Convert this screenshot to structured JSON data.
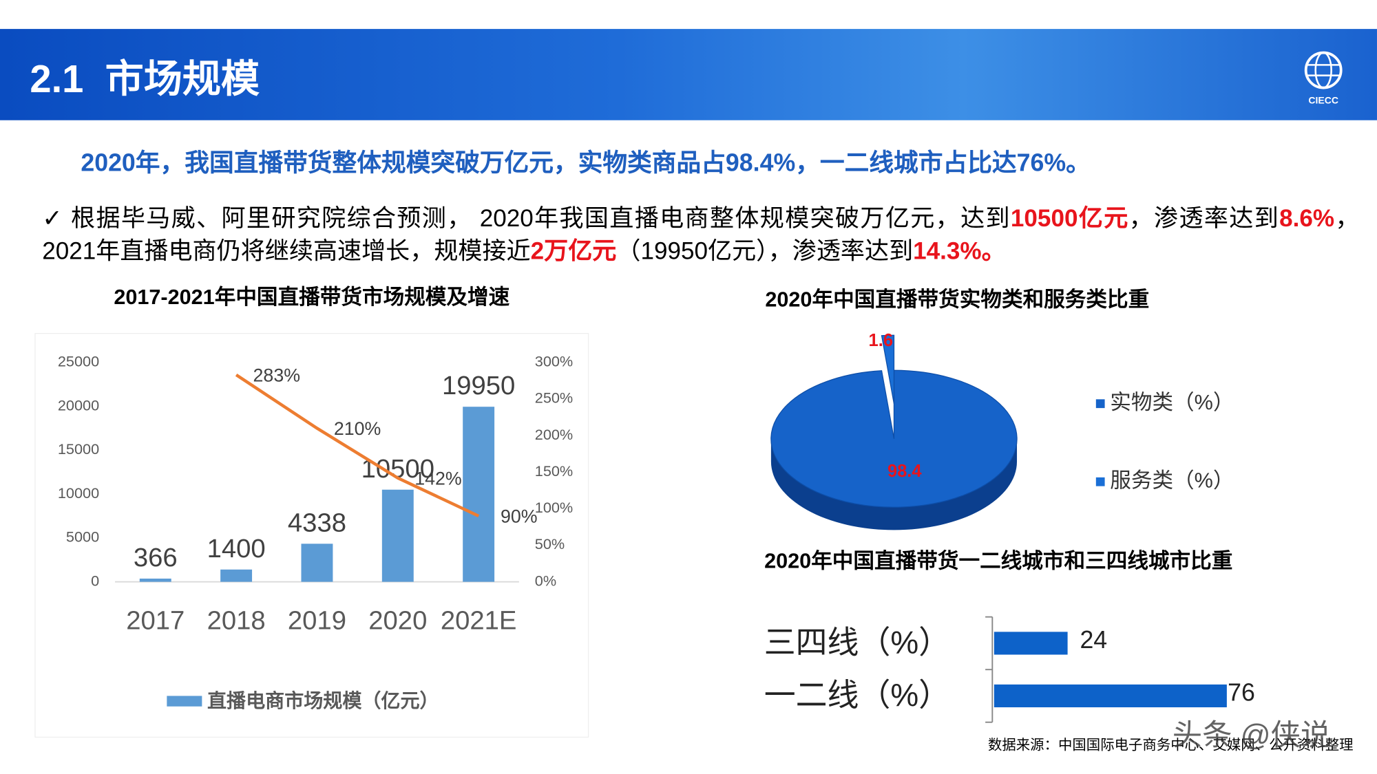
{
  "header": {
    "title": "2.1  市场规模",
    "logo": "CIECC"
  },
  "headline": "2020年，我国直播带货整体规模突破万亿元，实物类商品占98.4%，一二线城市占比达76%。",
  "body": [
    {
      "text": "✓   根据毕马威、阿里研究院综合预测， 2020年我国直播电商整体规模突破万亿元，达到",
      "color": "#000000"
    },
    {
      "text": "10500亿元",
      "color": "#e8141c"
    },
    {
      "text": "，渗透率达到",
      "color": "#000000"
    },
    {
      "text": "8.6%",
      "color": "#e8141c"
    },
    {
      "text": "，2021年直播电商仍将继续高速增长，规模接近",
      "color": "#000000"
    },
    {
      "text": "2万亿元",
      "color": "#e8141c"
    },
    {
      "text": "（19950亿元），渗透率达到",
      "color": "#000000"
    },
    {
      "text": "14.3%。",
      "color": "#e8141c"
    }
  ],
  "chart_data": [
    {
      "type": "bar",
      "title": "2017-2021年中国直播带货市场规模及增速",
      "categories": [
        "2017",
        "2018",
        "2019",
        "2020",
        "2021E"
      ],
      "series": [
        {
          "name": "直播电商市场规模（亿元）",
          "type": "bar",
          "color": "#5b9bd5",
          "values": [
            366,
            1400,
            4338,
            10500,
            19950
          ]
        },
        {
          "type": "line",
          "axis": "y2",
          "color": "#ed7d31",
          "values": [
            null,
            283,
            210,
            142,
            90
          ],
          "value_labels": [
            null,
            "283%",
            "210%",
            "142%",
            "90%"
          ]
        }
      ],
      "ylim": [
        0,
        25000
      ],
      "yticks": [
        0,
        5000,
        10000,
        15000,
        20000,
        25000
      ],
      "y2lim": [
        0,
        300
      ],
      "y2ticks": [
        {
          "value": 0,
          "label": "0%"
        },
        {
          "value": 50,
          "label": "50%"
        },
        {
          "value": 100,
          "label": "100%"
        },
        {
          "value": 150,
          "label": "150%"
        },
        {
          "value": 200,
          "label": "200%"
        },
        {
          "value": 250,
          "label": "250%"
        },
        {
          "value": 300,
          "label": "300%"
        }
      ],
      "grid": false,
      "legend": "bottom"
    },
    {
      "type": "pie",
      "title": "2020年中国直播带货实物类和服务类比重",
      "categories": [
        "实物类（%）",
        "服务类（%）"
      ],
      "values": [
        98.4,
        1.6
      ],
      "colors": [
        "#1663c9",
        "#1a6fd6"
      ],
      "label_color": "#e8141c",
      "legend": "right"
    },
    {
      "type": "hbar",
      "title": "2020年中国直播带货一二线城市和三四线城市比重",
      "categories": [
        "三四线（%）",
        "一二线（%）"
      ],
      "values": [
        24,
        76
      ],
      "color": "#0d62c9"
    }
  ],
  "source": "数据来源：中国国际电子商务中心、艾媒网、公开资料整理",
  "watermark": "头条 @侠说"
}
